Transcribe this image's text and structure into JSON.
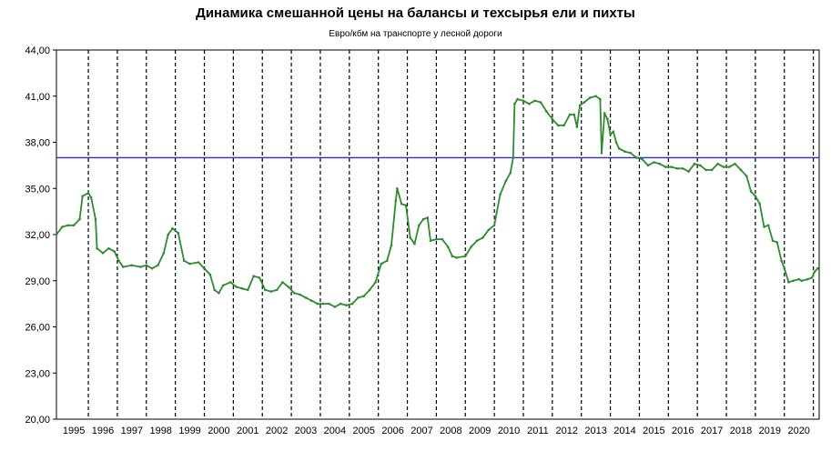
{
  "chart_data": {
    "type": "line",
    "title": "Динамика смешанной цены на балансы и техсырья ели и пихты",
    "subtitle": "Евро/кбм на транспорте у лесной дороги",
    "xlabel": "",
    "ylabel": "",
    "ylim": [
      20,
      44
    ],
    "xlim": [
      1994.9,
      2021.2
    ],
    "yticks": [
      "20,00",
      "23,00",
      "26,00",
      "29,00",
      "32,00",
      "35,00",
      "38,00",
      "41,00",
      "44,00"
    ],
    "ytick_values": [
      20,
      23,
      26,
      29,
      32,
      35,
      38,
      41,
      44
    ],
    "xticks": [
      "1995",
      "1996",
      "1997",
      "1998",
      "1999",
      "2000",
      "2001",
      "2002",
      "2003",
      "2004",
      "2005",
      "2006",
      "2007",
      "2008",
      "2009",
      "2010",
      "2011",
      "2012",
      "2013",
      "2014",
      "2015",
      "2016",
      "2017",
      "2018",
      "2019",
      "2020"
    ],
    "grid": "dashed vertical lines at year boundaries",
    "reference_line": {
      "value": 37.0,
      "color": "#2b2bd6"
    },
    "colors": {
      "series": "#2e8b2e",
      "grid": "#000000"
    },
    "series": [
      {
        "values": [
          [
            1994.9,
            32.0
          ],
          [
            1995.1,
            32.5
          ],
          [
            1995.3,
            32.6
          ],
          [
            1995.5,
            32.6
          ],
          [
            1995.7,
            33.0
          ],
          [
            1995.8,
            34.5
          ],
          [
            1996.0,
            34.7
          ],
          [
            1996.1,
            34.4
          ],
          [
            1996.25,
            33.0
          ],
          [
            1996.3,
            31.1
          ],
          [
            1996.5,
            30.8
          ],
          [
            1996.7,
            31.1
          ],
          [
            1996.9,
            30.9
          ],
          [
            1997.05,
            30.3
          ],
          [
            1997.2,
            29.9
          ],
          [
            1997.5,
            30.0
          ],
          [
            1997.8,
            29.9
          ],
          [
            1998.0,
            30.0
          ],
          [
            1998.2,
            29.8
          ],
          [
            1998.4,
            30.0
          ],
          [
            1998.6,
            30.8
          ],
          [
            1998.75,
            32.0
          ],
          [
            1998.9,
            32.4
          ],
          [
            1999.1,
            32.1
          ],
          [
            1999.3,
            30.3
          ],
          [
            1999.5,
            30.1
          ],
          [
            1999.8,
            30.2
          ],
          [
            2000.0,
            29.8
          ],
          [
            2000.2,
            29.4
          ],
          [
            2000.35,
            28.4
          ],
          [
            2000.5,
            28.2
          ],
          [
            2000.65,
            28.7
          ],
          [
            2000.9,
            28.9
          ],
          [
            2001.1,
            28.6
          ],
          [
            2001.3,
            28.5
          ],
          [
            2001.5,
            28.4
          ],
          [
            2001.7,
            29.3
          ],
          [
            2001.9,
            29.2
          ],
          [
            2002.1,
            28.4
          ],
          [
            2002.3,
            28.3
          ],
          [
            2002.5,
            28.4
          ],
          [
            2002.7,
            28.9
          ],
          [
            2002.9,
            28.6
          ],
          [
            2003.1,
            28.2
          ],
          [
            2003.3,
            28.1
          ],
          [
            2003.5,
            27.9
          ],
          [
            2003.7,
            27.7
          ],
          [
            2003.9,
            27.5
          ],
          [
            2004.1,
            27.5
          ],
          [
            2004.3,
            27.5
          ],
          [
            2004.5,
            27.3
          ],
          [
            2004.7,
            27.5
          ],
          [
            2004.9,
            27.4
          ],
          [
            2005.1,
            27.5
          ],
          [
            2005.3,
            27.9
          ],
          [
            2005.5,
            28.0
          ],
          [
            2005.7,
            28.4
          ],
          [
            2005.9,
            28.9
          ],
          [
            2006.1,
            30.1
          ],
          [
            2006.3,
            30.3
          ],
          [
            2006.45,
            31.3
          ],
          [
            2006.6,
            34.2
          ],
          [
            2006.65,
            35.0
          ],
          [
            2006.8,
            34.0
          ],
          [
            2006.95,
            33.9
          ],
          [
            2007.1,
            31.8
          ],
          [
            2007.25,
            31.4
          ],
          [
            2007.4,
            32.6
          ],
          [
            2007.55,
            33.0
          ],
          [
            2007.7,
            33.1
          ],
          [
            2007.8,
            31.6
          ],
          [
            2008.0,
            31.7
          ],
          [
            2008.2,
            31.7
          ],
          [
            2008.4,
            31.2
          ],
          [
            2008.55,
            30.6
          ],
          [
            2008.7,
            30.5
          ],
          [
            2009.0,
            30.6
          ],
          [
            2009.2,
            31.2
          ],
          [
            2009.4,
            31.6
          ],
          [
            2009.6,
            31.8
          ],
          [
            2009.8,
            32.3
          ],
          [
            2010.0,
            32.6
          ],
          [
            2010.2,
            34.6
          ],
          [
            2010.4,
            35.5
          ],
          [
            2010.55,
            36.0
          ],
          [
            2010.65,
            37.0
          ],
          [
            2010.7,
            40.5
          ],
          [
            2010.8,
            40.8
          ],
          [
            2011.0,
            40.7
          ],
          [
            2011.2,
            40.5
          ],
          [
            2011.4,
            40.7
          ],
          [
            2011.6,
            40.6
          ],
          [
            2011.8,
            40.0
          ],
          [
            2012.0,
            39.5
          ],
          [
            2012.2,
            39.1
          ],
          [
            2012.4,
            39.1
          ],
          [
            2012.6,
            39.8
          ],
          [
            2012.75,
            39.8
          ],
          [
            2012.85,
            39.0
          ],
          [
            2012.95,
            40.4
          ],
          [
            2013.1,
            40.6
          ],
          [
            2013.3,
            40.9
          ],
          [
            2013.5,
            41.0
          ],
          [
            2013.65,
            40.8
          ],
          [
            2013.7,
            37.3
          ],
          [
            2013.8,
            39.9
          ],
          [
            2013.9,
            39.5
          ],
          [
            2014.0,
            38.5
          ],
          [
            2014.1,
            38.7
          ],
          [
            2014.2,
            38.0
          ],
          [
            2014.3,
            37.6
          ],
          [
            2014.5,
            37.4
          ],
          [
            2014.7,
            37.3
          ],
          [
            2014.9,
            37.0
          ],
          [
            2015.1,
            36.9
          ],
          [
            2015.3,
            36.5
          ],
          [
            2015.5,
            36.7
          ],
          [
            2015.7,
            36.6
          ],
          [
            2015.9,
            36.4
          ],
          [
            2016.1,
            36.4
          ],
          [
            2016.3,
            36.3
          ],
          [
            2016.5,
            36.3
          ],
          [
            2016.7,
            36.1
          ],
          [
            2016.9,
            36.6
          ],
          [
            2017.1,
            36.5
          ],
          [
            2017.3,
            36.2
          ],
          [
            2017.5,
            36.2
          ],
          [
            2017.7,
            36.6
          ],
          [
            2017.9,
            36.4
          ],
          [
            2018.1,
            36.4
          ],
          [
            2018.3,
            36.6
          ],
          [
            2018.5,
            36.2
          ],
          [
            2018.7,
            35.8
          ],
          [
            2018.85,
            34.8
          ],
          [
            2019.0,
            34.5
          ],
          [
            2019.15,
            34.0
          ],
          [
            2019.3,
            32.5
          ],
          [
            2019.45,
            32.6
          ],
          [
            2019.6,
            31.6
          ],
          [
            2019.75,
            31.5
          ],
          [
            2019.9,
            30.3
          ],
          [
            2020.0,
            29.8
          ],
          [
            2020.15,
            28.9
          ],
          [
            2020.3,
            29.0
          ],
          [
            2020.5,
            29.1
          ],
          [
            2020.6,
            29.0
          ],
          [
            2020.8,
            29.1
          ],
          [
            2020.95,
            29.2
          ],
          [
            2021.05,
            29.6
          ],
          [
            2021.15,
            29.8
          ]
        ]
      }
    ]
  }
}
